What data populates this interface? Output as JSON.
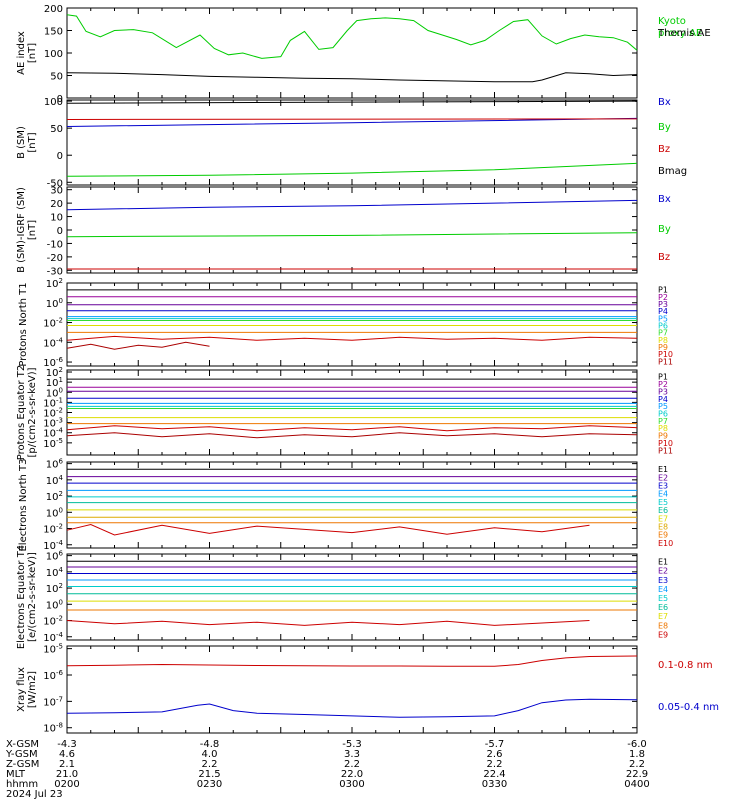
{
  "figure": {
    "date": "2024 Jul 23",
    "ephemeris_labels": [
      "X-GSM",
      "Y-GSM",
      "Z-GSM",
      "MLT",
      "hhmm"
    ],
    "ephemeris_columns": [
      [
        "-4.3",
        "4.6",
        "2.1",
        "21.0",
        "0200"
      ],
      [
        "-4.8",
        "4.0",
        "2.2",
        "21.5",
        "0230"
      ],
      [
        "-5.3",
        "3.3",
        "2.2",
        "22.0",
        "0300"
      ],
      [
        "-5.7",
        "2.6",
        "2.2",
        "22.4",
        "0330"
      ],
      [
        "-6.0",
        "1.8",
        "2.2",
        "22.9",
        "0400"
      ]
    ]
  },
  "colors": {
    "black": "#000000",
    "red": "#cc0000",
    "green": "#00cc00",
    "blue": "#0000cc",
    "magenta": "#990099",
    "purple": "#660099",
    "navy": "#0000aa",
    "sky": "#0099ff",
    "cyan": "#00cccc",
    "teal": "#00bb99",
    "lime": "#33dd33",
    "yellow": "#dddd00",
    "gold": "#ddaa00",
    "orange": "#ee7700",
    "darkred": "#aa0000"
  },
  "chart_data": [
    {
      "type": "line",
      "ylabel": "AE index [nT]",
      "ylim": [
        0,
        200
      ],
      "yticks": [
        "0",
        "50",
        "100",
        "150",
        "200"
      ],
      "ylog": false,
      "series": [
        {
          "name": "Kyoto proxy AE",
          "color": "#00cc00",
          "x": [
            0,
            4,
            8,
            14,
            20,
            28,
            36,
            46,
            56,
            62,
            68,
            74,
            82,
            90,
            94,
            100,
            106,
            112,
            118,
            122,
            128,
            134,
            140,
            146,
            152,
            158,
            164,
            170,
            176,
            182,
            188,
            194,
            200,
            206,
            212,
            218,
            224,
            230,
            236,
            240
          ],
          "values": [
            185,
            182,
            148,
            136,
            150,
            152,
            145,
            112,
            140,
            110,
            96,
            100,
            88,
            92,
            128,
            148,
            108,
            112,
            150,
            172,
            176,
            178,
            176,
            172,
            150,
            140,
            130,
            118,
            128,
            150,
            170,
            174,
            138,
            120,
            132,
            140,
            136,
            134,
            124,
            106
          ]
        },
        {
          "name": "Themis AE",
          "color": "#000000",
          "x": [
            0,
            20,
            40,
            60,
            80,
            100,
            120,
            140,
            160,
            180,
            196,
            200,
            210,
            220,
            230,
            240
          ],
          "values": [
            56,
            55,
            52,
            48,
            46,
            44,
            43,
            40,
            38,
            36,
            36,
            40,
            56,
            54,
            50,
            52
          ]
        }
      ]
    },
    {
      "type": "line",
      "ylabel": "B (SM) [nT]",
      "ylim": [
        -55,
        102
      ],
      "yticks": [
        "-50",
        "0",
        "50",
        "100"
      ],
      "ylog": false,
      "series": [
        {
          "name": "Bx",
          "color": "#0000cc",
          "x": [
            0,
            120,
            240
          ],
          "values": [
            53,
            60,
            68
          ]
        },
        {
          "name": "By",
          "color": "#00cc00",
          "x": [
            0,
            60,
            120,
            180,
            240
          ],
          "values": [
            -39,
            -37,
            -33,
            -27,
            -15
          ]
        },
        {
          "name": "Bz",
          "color": "#cc0000",
          "x": [
            0,
            240
          ],
          "values": [
            66,
            67
          ]
        },
        {
          "name": "Bmag",
          "color": "#000000",
          "x": [
            0,
            240
          ],
          "values": [
            96,
            100
          ]
        }
      ]
    },
    {
      "type": "line",
      "ylabel": "B (SM)-IGRF (SM) [nT]",
      "ylim": [
        -32,
        32
      ],
      "yticks": [
        "-30",
        "-20",
        "-10",
        "0",
        "10",
        "20",
        "30"
      ],
      "ylog": false,
      "series": [
        {
          "name": "Bx",
          "color": "#0000cc",
          "x": [
            0,
            60,
            120,
            180,
            240
          ],
          "values": [
            15,
            17,
            18,
            20,
            22
          ]
        },
        {
          "name": "By",
          "color": "#00cc00",
          "x": [
            0,
            120,
            240
          ],
          "values": [
            -5,
            -4,
            -2
          ]
        },
        {
          "name": "Bz",
          "color": "#cc0000",
          "x": [
            0,
            240
          ],
          "values": [
            -29,
            -29
          ]
        }
      ]
    },
    {
      "type": "line",
      "ylabel": "Protons North T1",
      "ylog": true,
      "ylim": [
        -6.4,
        2
      ],
      "yticks": [
        "10^-6",
        "10^-4",
        "10^-2",
        "10^0",
        "10^2"
      ],
      "series": [
        {
          "name": "P1",
          "color": "#000000",
          "x": [
            0,
            240
          ],
          "values": [
            1.3,
            1.3
          ]
        },
        {
          "name": "P2",
          "color": "#990099",
          "x": [
            0,
            240
          ],
          "values": [
            0.6,
            0.6
          ]
        },
        {
          "name": "P3",
          "color": "#660099",
          "x": [
            0,
            240
          ],
          "values": [
            -0.2,
            -0.2
          ]
        },
        {
          "name": "P4",
          "color": "#0000cc",
          "x": [
            0,
            240
          ],
          "values": [
            -0.8,
            -0.8
          ]
        },
        {
          "name": "P5",
          "color": "#0099ff",
          "x": [
            0,
            240
          ],
          "values": [
            -1.4,
            -1.4
          ]
        },
        {
          "name": "P6",
          "color": "#00cccc",
          "x": [
            0,
            240
          ],
          "values": [
            -1.6,
            -1.6
          ]
        },
        {
          "name": "P7",
          "color": "#33dd33",
          "x": [
            0,
            240
          ],
          "values": [
            -1.8,
            -1.8
          ]
        },
        {
          "name": "P8",
          "color": "#dddd00",
          "x": [
            0,
            240
          ],
          "values": [
            -2.3,
            -2.3
          ]
        },
        {
          "name": "P9",
          "color": "#ee7700",
          "x": [
            0,
            240
          ],
          "values": [
            -3.0,
            -3.0
          ]
        },
        {
          "name": "P10",
          "color": "#cc0000",
          "x": [
            0,
            20,
            40,
            60,
            80,
            100,
            120,
            140,
            160,
            180,
            200,
            220,
            240
          ],
          "values": [
            -3.8,
            -3.4,
            -3.7,
            -3.5,
            -3.8,
            -3.6,
            -3.8,
            -3.5,
            -3.7,
            -3.6,
            -3.8,
            -3.5,
            -3.6
          ]
        },
        {
          "name": "P11",
          "color": "#aa0000",
          "x": [
            0,
            10,
            20,
            30,
            40,
            50,
            60
          ],
          "values": [
            -4.6,
            -4.2,
            -4.7,
            -4.3,
            -4.5,
            -4.0,
            -4.4
          ]
        }
      ]
    },
    {
      "type": "line",
      "ylabel": "Protons Equator T2 [p/(cm2-s-sr-keV)]",
      "ylog": true,
      "ylim": [
        -6.2,
        2.2
      ],
      "yticks": [
        "10^-5",
        "10^-4",
        "10^-3",
        "10^-2",
        "10^-1",
        "10^0",
        "10^1",
        "10^2"
      ],
      "series": [
        {
          "name": "P1",
          "color": "#000000",
          "x": [
            0,
            240
          ],
          "values": [
            1.3,
            1.3
          ]
        },
        {
          "name": "P2",
          "color": "#990099",
          "x": [
            0,
            240
          ],
          "values": [
            0.5,
            0.5
          ]
        },
        {
          "name": "P3",
          "color": "#660099",
          "x": [
            0,
            240
          ],
          "values": [
            0.1,
            0.1
          ]
        },
        {
          "name": "P4",
          "color": "#0000cc",
          "x": [
            0,
            240
          ],
          "values": [
            -0.6,
            -0.6
          ]
        },
        {
          "name": "P5",
          "color": "#0099ff",
          "x": [
            0,
            240
          ],
          "values": [
            -1.1,
            -1.1
          ]
        },
        {
          "name": "P6",
          "color": "#00cccc",
          "x": [
            0,
            240
          ],
          "values": [
            -1.4,
            -1.4
          ]
        },
        {
          "name": "P7",
          "color": "#33dd33",
          "x": [
            0,
            240
          ],
          "values": [
            -1.6,
            -1.6
          ]
        },
        {
          "name": "P8",
          "color": "#dddd00",
          "x": [
            0,
            240
          ],
          "values": [
            -2.5,
            -2.5
          ]
        },
        {
          "name": "P9",
          "color": "#ee7700",
          "x": [
            0,
            240
          ],
          "values": [
            -3.1,
            -3.1
          ]
        },
        {
          "name": "P10",
          "color": "#cc0000",
          "x": [
            0,
            20,
            40,
            60,
            80,
            100,
            120,
            140,
            160,
            180,
            200,
            220,
            240
          ],
          "values": [
            -3.7,
            -3.3,
            -3.6,
            -3.4,
            -3.8,
            -3.5,
            -3.7,
            -3.4,
            -3.8,
            -3.5,
            -3.6,
            -3.3,
            -3.5
          ]
        },
        {
          "name": "P11",
          "color": "#aa0000",
          "x": [
            0,
            20,
            40,
            60,
            80,
            100,
            120,
            140,
            160,
            180,
            200,
            220,
            240
          ],
          "values": [
            -4.3,
            -4.0,
            -4.4,
            -4.1,
            -4.5,
            -4.2,
            -4.4,
            -4.0,
            -4.3,
            -4.1,
            -4.4,
            -4.1,
            -4.2
          ]
        }
      ]
    },
    {
      "type": "line",
      "ylabel": "Electrons North T3",
      "ylog": true,
      "ylim": [
        -4.4,
        6.2
      ],
      "yticks": [
        "10^-4",
        "10^-2",
        "10^0",
        "10^2",
        "10^4",
        "10^6"
      ],
      "series": [
        {
          "name": "E1",
          "color": "#000000",
          "x": [
            0,
            240
          ],
          "values": [
            5.3,
            5.3
          ]
        },
        {
          "name": "E2",
          "color": "#660099",
          "x": [
            0,
            240
          ],
          "values": [
            4.4,
            4.4
          ]
        },
        {
          "name": "E3",
          "color": "#0000cc",
          "x": [
            0,
            240
          ],
          "values": [
            3.6,
            3.6
          ]
        },
        {
          "name": "E4",
          "color": "#0099ff",
          "x": [
            0,
            240
          ],
          "values": [
            2.7,
            2.7
          ]
        },
        {
          "name": "E5",
          "color": "#00cccc",
          "x": [
            0,
            240
          ],
          "values": [
            1.9,
            1.9
          ]
        },
        {
          "name": "E6",
          "color": "#00bb99",
          "x": [
            0,
            240
          ],
          "values": [
            1.2,
            1.2
          ]
        },
        {
          "name": "E7",
          "color": "#dddd00",
          "x": [
            0,
            240
          ],
          "values": [
            0.3,
            0.3
          ]
        },
        {
          "name": "E8",
          "color": "#ddaa00",
          "x": [
            0,
            240
          ],
          "values": [
            -0.6,
            -0.6
          ]
        },
        {
          "name": "E9",
          "color": "#ee7700",
          "x": [
            0,
            240
          ],
          "values": [
            -1.3,
            -1.3
          ]
        },
        {
          "name": "E10",
          "color": "#cc0000",
          "x": [
            0,
            10,
            20,
            40,
            60,
            80,
            120,
            140,
            160,
            180,
            200,
            220
          ],
          "values": [
            -2.2,
            -1.5,
            -2.8,
            -1.6,
            -2.6,
            -1.7,
            -2.5,
            -1.8,
            -2.7,
            -1.9,
            -2.4,
            -1.6
          ]
        }
      ]
    },
    {
      "type": "line",
      "ylabel": "Electrons Equator T4 [e/(cm2-s-sr-keV)]",
      "ylog": true,
      "ylim": [
        -4.4,
        6.2
      ],
      "yticks": [
        "10^-4",
        "10^-2",
        "10^0",
        "10^2",
        "10^4",
        "10^6"
      ],
      "series": [
        {
          "name": "E1",
          "color": "#000000",
          "x": [
            0,
            240
          ],
          "values": [
            5.3,
            5.3
          ]
        },
        {
          "name": "E2",
          "color": "#660099",
          "x": [
            0,
            240
          ],
          "values": [
            4.6,
            4.6
          ]
        },
        {
          "name": "E3",
          "color": "#0000cc",
          "x": [
            0,
            240
          ],
          "values": [
            3.8,
            3.8
          ]
        },
        {
          "name": "E4",
          "color": "#0099ff",
          "x": [
            0,
            240
          ],
          "values": [
            3.0,
            3.0
          ]
        },
        {
          "name": "E5",
          "color": "#00cccc",
          "x": [
            0,
            240
          ],
          "values": [
            2.2,
            2.2
          ]
        },
        {
          "name": "E6",
          "color": "#00bb99",
          "x": [
            0,
            240
          ],
          "values": [
            1.3,
            1.3
          ]
        },
        {
          "name": "E7",
          "color": "#dddd00",
          "x": [
            0,
            240
          ],
          "values": [
            0.4,
            0.4
          ]
        },
        {
          "name": "E8",
          "color": "#ee7700",
          "x": [
            0,
            240
          ],
          "values": [
            -0.7,
            -0.7
          ]
        },
        {
          "name": "E9",
          "color": "#cc0000",
          "x": [
            0,
            20,
            40,
            60,
            80,
            100,
            120,
            140,
            160,
            180,
            200,
            220
          ],
          "values": [
            -2.0,
            -2.4,
            -2.1,
            -2.5,
            -2.2,
            -2.6,
            -2.2,
            -2.5,
            -2.1,
            -2.6,
            -2.3,
            -2.0
          ]
        }
      ]
    },
    {
      "type": "line",
      "ylabel": "Xray flux [W/m2]",
      "ylog": true,
      "ylim": [
        -8.2,
        -4.9
      ],
      "yticks": [
        "10^-8",
        "10^-7",
        "10^-6",
        "10^-5"
      ],
      "series": [
        {
          "name": "0.1-0.8 nm",
          "color": "#cc0000",
          "x": [
            0,
            20,
            40,
            60,
            80,
            100,
            120,
            140,
            160,
            180,
            190,
            200,
            210,
            220,
            240
          ],
          "values": [
            -5.65,
            -5.63,
            -5.6,
            -5.62,
            -5.64,
            -5.65,
            -5.66,
            -5.66,
            -5.67,
            -5.67,
            -5.6,
            -5.45,
            -5.35,
            -5.3,
            -5.28
          ]
        },
        {
          "name": "0.05-0.4 nm",
          "color": "#0000cc",
          "x": [
            0,
            20,
            40,
            55,
            60,
            70,
            80,
            100,
            120,
            140,
            160,
            180,
            190,
            200,
            210,
            220,
            240
          ],
          "values": [
            -7.45,
            -7.43,
            -7.4,
            -7.15,
            -7.1,
            -7.35,
            -7.45,
            -7.5,
            -7.55,
            -7.6,
            -7.58,
            -7.55,
            -7.35,
            -7.05,
            -6.95,
            -6.92,
            -6.94
          ]
        }
      ]
    }
  ]
}
